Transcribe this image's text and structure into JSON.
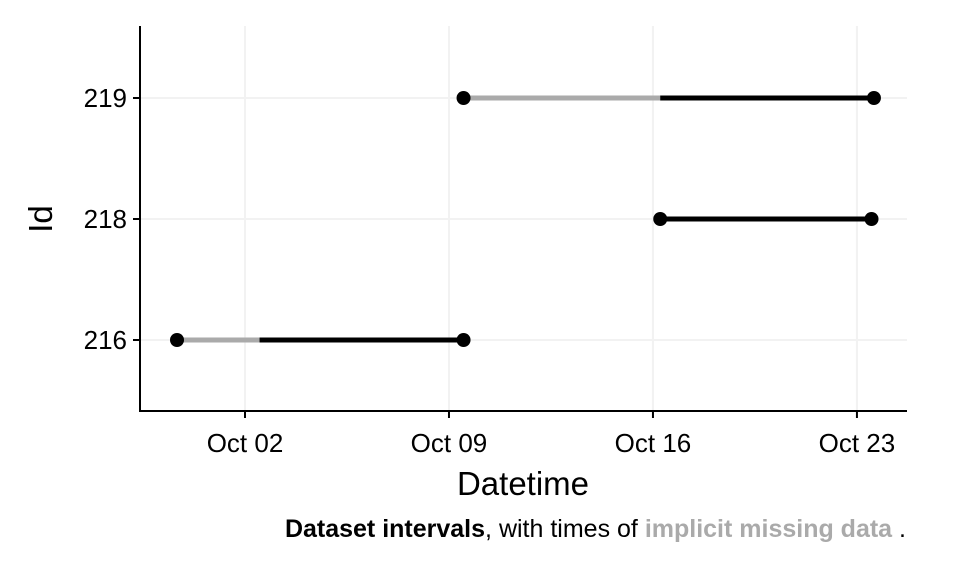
{
  "chart_data": {
    "type": "line",
    "title": "",
    "xlabel": "Datetime",
    "ylabel": "Id",
    "x_ticks": [
      "2023-10-02",
      "2023-10-09",
      "2023-10-16",
      "2023-10-23"
    ],
    "x_tick_labels": [
      "Oct 02",
      "Oct 09",
      "Oct 16",
      "Oct 23"
    ],
    "xlim": [
      "2023-09-28",
      "2023-10-24"
    ],
    "y_categories": [
      "216",
      "218",
      "219"
    ],
    "grid": true,
    "legend": "none",
    "colors": {
      "observed": "#000000",
      "missing": "#aaaaaa",
      "grid": "#f2f2f2"
    },
    "intervals": [
      {
        "id": "216",
        "start": "2023-09-29 16:00",
        "end": "2023-10-09 12:00",
        "missing": [
          [
            "2023-09-29 16:00",
            "2023-10-02 12:00"
          ]
        ]
      },
      {
        "id": "218",
        "start": "2023-10-16 06:00",
        "end": "2023-10-23 12:00",
        "missing": []
      },
      {
        "id": "219",
        "start": "2023-10-09 12:00",
        "end": "2023-10-23 14:00",
        "missing": [
          [
            "2023-10-09 12:00",
            "2023-10-16 06:00"
          ]
        ]
      }
    ]
  },
  "caption": {
    "bold_part": "Dataset intervals",
    "middle": ", with times of ",
    "grey_part": "implicit missing data",
    "end": " ."
  }
}
